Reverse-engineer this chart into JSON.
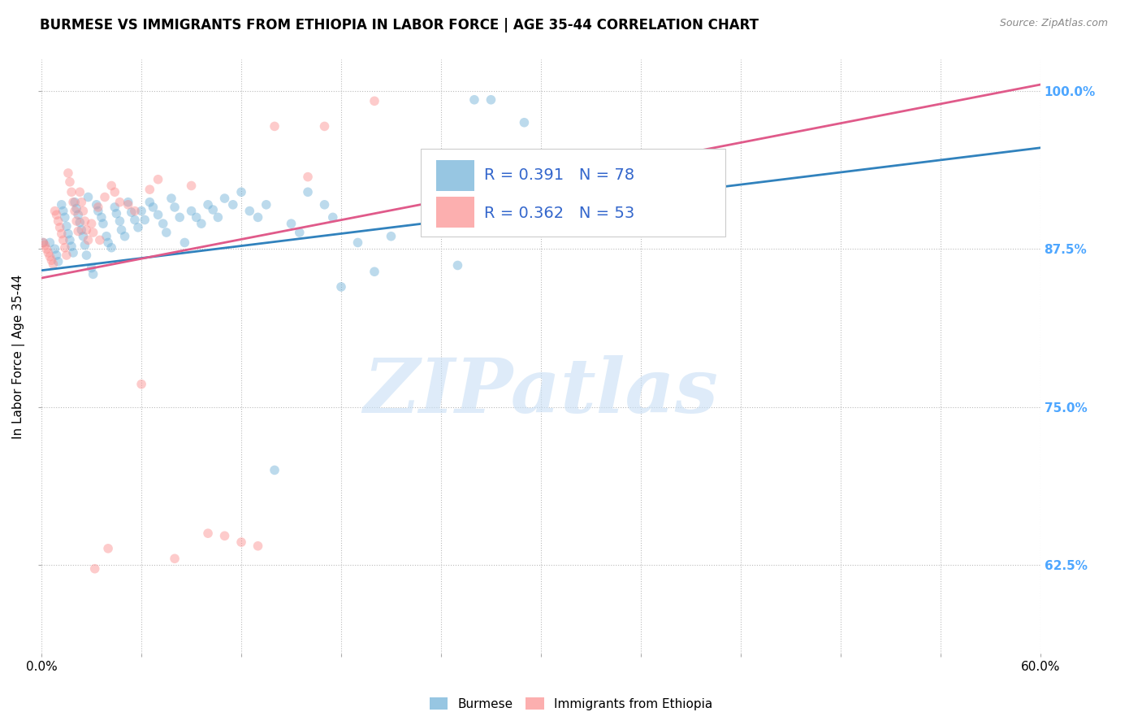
{
  "title": "BURMESE VS IMMIGRANTS FROM ETHIOPIA IN LABOR FORCE | AGE 35-44 CORRELATION CHART",
  "source": "Source: ZipAtlas.com",
  "ylabel": "In Labor Force | Age 35-44",
  "watermark": "ZIPatlas",
  "blue_R": 0.391,
  "blue_N": 78,
  "pink_R": 0.362,
  "pink_N": 53,
  "blue_color": "#6baed6",
  "pink_color": "#fc8d8d",
  "blue_line_color": "#3182bd",
  "pink_line_color": "#e05a8a",
  "right_tick_color": "#4da6ff",
  "legend_text_color": "#3366cc",
  "x_min": 0.0,
  "x_max": 0.6,
  "y_min": 0.555,
  "y_max": 1.025,
  "y_ticks": [
    0.625,
    0.75,
    0.875,
    1.0
  ],
  "y_tick_labels": [
    "62.5%",
    "75.0%",
    "87.5%",
    "100.0%"
  ],
  "blue_scatter_x": [
    0.001,
    0.005,
    0.008,
    0.009,
    0.01,
    0.012,
    0.013,
    0.014,
    0.015,
    0.016,
    0.017,
    0.018,
    0.019,
    0.02,
    0.021,
    0.022,
    0.023,
    0.024,
    0.025,
    0.026,
    0.027,
    0.028,
    0.03,
    0.031,
    0.033,
    0.034,
    0.036,
    0.037,
    0.039,
    0.04,
    0.042,
    0.044,
    0.045,
    0.047,
    0.048,
    0.05,
    0.052,
    0.054,
    0.056,
    0.058,
    0.06,
    0.062,
    0.065,
    0.067,
    0.07,
    0.073,
    0.075,
    0.078,
    0.08,
    0.083,
    0.086,
    0.09,
    0.093,
    0.096,
    0.1,
    0.103,
    0.106,
    0.11,
    0.115,
    0.12,
    0.125,
    0.13,
    0.135,
    0.14,
    0.15,
    0.155,
    0.16,
    0.17,
    0.175,
    0.18,
    0.19,
    0.2,
    0.21,
    0.25,
    0.26,
    0.27,
    0.28,
    0.29
  ],
  "blue_scatter_y": [
    0.88,
    0.88,
    0.875,
    0.87,
    0.865,
    0.91,
    0.905,
    0.9,
    0.893,
    0.887,
    0.882,
    0.877,
    0.872,
    0.912,
    0.907,
    0.902,
    0.896,
    0.89,
    0.885,
    0.878,
    0.87,
    0.916,
    0.86,
    0.855,
    0.91,
    0.905,
    0.9,
    0.895,
    0.885,
    0.88,
    0.876,
    0.908,
    0.903,
    0.897,
    0.89,
    0.885,
    0.912,
    0.904,
    0.898,
    0.892,
    0.905,
    0.898,
    0.912,
    0.908,
    0.902,
    0.895,
    0.888,
    0.915,
    0.908,
    0.9,
    0.88,
    0.905,
    0.9,
    0.895,
    0.91,
    0.906,
    0.9,
    0.915,
    0.91,
    0.92,
    0.905,
    0.9,
    0.91,
    0.7,
    0.895,
    0.888,
    0.92,
    0.91,
    0.9,
    0.845,
    0.88,
    0.857,
    0.885,
    0.862,
    0.993,
    0.993,
    0.925,
    0.975
  ],
  "pink_scatter_x": [
    0.001,
    0.002,
    0.003,
    0.004,
    0.005,
    0.006,
    0.007,
    0.008,
    0.009,
    0.01,
    0.011,
    0.012,
    0.013,
    0.014,
    0.015,
    0.016,
    0.017,
    0.018,
    0.019,
    0.02,
    0.021,
    0.022,
    0.023,
    0.024,
    0.025,
    0.026,
    0.027,
    0.028,
    0.03,
    0.031,
    0.032,
    0.034,
    0.035,
    0.038,
    0.04,
    0.042,
    0.044,
    0.047,
    0.052,
    0.056,
    0.06,
    0.065,
    0.07,
    0.08,
    0.09,
    0.1,
    0.11,
    0.12,
    0.13,
    0.14,
    0.16,
    0.17,
    0.2
  ],
  "pink_scatter_y": [
    0.88,
    0.878,
    0.875,
    0.872,
    0.869,
    0.866,
    0.863,
    0.905,
    0.902,
    0.897,
    0.892,
    0.887,
    0.882,
    0.876,
    0.87,
    0.935,
    0.928,
    0.92,
    0.912,
    0.905,
    0.897,
    0.889,
    0.92,
    0.912,
    0.905,
    0.897,
    0.89,
    0.882,
    0.895,
    0.888,
    0.622,
    0.908,
    0.882,
    0.916,
    0.638,
    0.925,
    0.92,
    0.912,
    0.91,
    0.905,
    0.768,
    0.922,
    0.93,
    0.63,
    0.925,
    0.65,
    0.648,
    0.643,
    0.64,
    0.972,
    0.932,
    0.972,
    0.992
  ],
  "blue_line_x": [
    0.0,
    0.6
  ],
  "blue_line_y": [
    0.858,
    0.955
  ],
  "pink_line_x": [
    0.0,
    0.6
  ],
  "pink_line_y": [
    0.852,
    1.005
  ],
  "legend_labels": [
    "Burmese",
    "Immigrants from Ethiopia"
  ],
  "title_fontsize": 12,
  "axis_label_fontsize": 11,
  "tick_fontsize": 11,
  "marker_size": 70,
  "marker_alpha": 0.45
}
